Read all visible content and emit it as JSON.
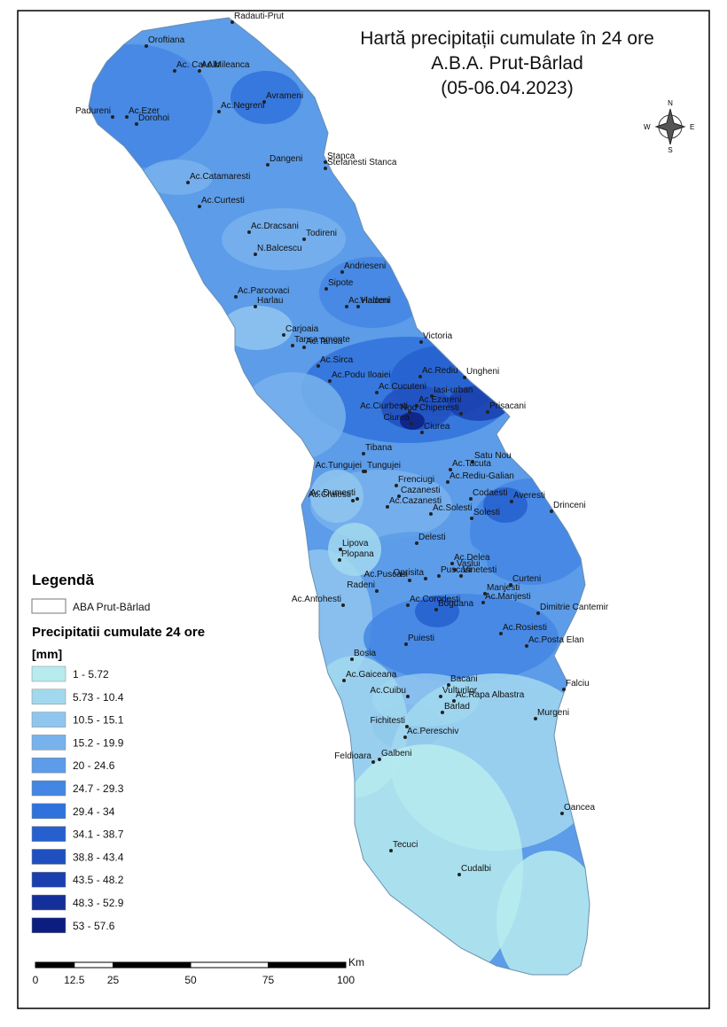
{
  "title": {
    "lines": [
      "Hartă precipitații cumulate în 24 ore",
      "A.B.A. Prut-Bârlad",
      "(05-06.04.2023)"
    ]
  },
  "compass": {
    "north": "N",
    "south": "S",
    "east": "E",
    "west": "W"
  },
  "legend": {
    "title": "Legendă",
    "boundary_label": "ABA Prut-Bârlad",
    "subtitle": "Precipitatii cumulate 24 ore",
    "unit": "[mm]",
    "classes": [
      {
        "label": "1 - 5.72",
        "color": "#b7ecef"
      },
      {
        "label": "5.73 - 10.4",
        "color": "#a2d8ee"
      },
      {
        "label": "10.5 - 15.1",
        "color": "#8fc6ef"
      },
      {
        "label": "15.2 - 19.9",
        "color": "#78b2ec"
      },
      {
        "label": "20 - 24.6",
        "color": "#5c9ce8"
      },
      {
        "label": "24.7 - 29.3",
        "color": "#4386e3"
      },
      {
        "label": "29.4 - 34",
        "color": "#2f72dc"
      },
      {
        "label": "34.1 - 38.7",
        "color": "#2660cf"
      },
      {
        "label": "38.8 - 43.4",
        "color": "#2050c0"
      },
      {
        "label": "43.5 - 48.2",
        "color": "#1a3fae"
      },
      {
        "label": "48.3 - 52.9",
        "color": "#142f9a"
      },
      {
        "label": "53 - 57.6",
        "color": "#0c1d80"
      }
    ]
  },
  "scale_bar": {
    "ticks": [
      0,
      12.5,
      25,
      50,
      75,
      100
    ],
    "unit": "Km"
  },
  "stations": [
    {
      "name": "Radauti-Prut"
    },
    {
      "name": "Oroftiana"
    },
    {
      "name": "Ac. Cal Alb"
    },
    {
      "name": "Ac.Mileanca"
    },
    {
      "name": "Avrameni"
    },
    {
      "name": "Ac.Negreni"
    },
    {
      "name": "Padureni"
    },
    {
      "name": "Ac.Ezer"
    },
    {
      "name": "Dorohoi"
    },
    {
      "name": "Dangeni"
    },
    {
      "name": "Stanca"
    },
    {
      "name": "Stefanesti Stanca"
    },
    {
      "name": "Ac.Catamaresti"
    },
    {
      "name": "Ac.Curtesti"
    },
    {
      "name": "Ac.Dracsani"
    },
    {
      "name": "Todireni"
    },
    {
      "name": "N.Balcescu"
    },
    {
      "name": "Andrieseni"
    },
    {
      "name": "Sipote"
    },
    {
      "name": "Ac.Parcovaci"
    },
    {
      "name": "Ac.Halceni"
    },
    {
      "name": "Vladeni"
    },
    {
      "name": "Harlau"
    },
    {
      "name": "Carjoaia"
    },
    {
      "name": "Tansa amonte"
    },
    {
      "name": "Ac.Tansa"
    },
    {
      "name": "Victoria"
    },
    {
      "name": "Ac.Sirca"
    },
    {
      "name": "Ac.Podu Iloaiei"
    },
    {
      "name": "Ac.Rediu"
    },
    {
      "name": "Ungheni"
    },
    {
      "name": "Ac.Cucuteni"
    },
    {
      "name": "Iasi-urban"
    },
    {
      "name": "Ac.Ezareni"
    },
    {
      "name": "Prisacani"
    },
    {
      "name": "Nod Chiperesti"
    },
    {
      "name": "Ac.Ciurbesti"
    },
    {
      "name": "Ciurea"
    },
    {
      "name": "Ciurea"
    },
    {
      "name": "Tibana"
    },
    {
      "name": "Ac.Tungujei"
    },
    {
      "name": "Tungujei"
    },
    {
      "name": "Satu Nou"
    },
    {
      "name": "Ac.Tacuta"
    },
    {
      "name": "Ac.Rediu-Galian"
    },
    {
      "name": "Frenciugi"
    },
    {
      "name": "Cazanesti"
    },
    {
      "name": "Ac.Craiesti"
    },
    {
      "name": "Ac.Dumesti"
    },
    {
      "name": "Codaesti"
    },
    {
      "name": "Averesti"
    },
    {
      "name": "Drinceni"
    },
    {
      "name": "Ac.Cazanesti"
    },
    {
      "name": "Ac.Solesti"
    },
    {
      "name": "Solesti"
    },
    {
      "name": "Delesti"
    },
    {
      "name": "Lipova"
    },
    {
      "name": "Plopana"
    },
    {
      "name": "Ac.Delea"
    },
    {
      "name": "Vaslui"
    },
    {
      "name": "Oprisita"
    },
    {
      "name": "Puscasi"
    },
    {
      "name": "Vinetesti"
    },
    {
      "name": "Curteni"
    },
    {
      "name": "Ac.Puscasi"
    },
    {
      "name": "Radeni"
    },
    {
      "name": "Manjesti"
    },
    {
      "name": "Ac.Antohesti"
    },
    {
      "name": "Ac.Corodesti"
    },
    {
      "name": "Ac.Manjesti"
    },
    {
      "name": "Bogdana"
    },
    {
      "name": "Dimitrie Cantemir"
    },
    {
      "name": "Ac.Rosiesti"
    },
    {
      "name": "Ac.Posta Elan"
    },
    {
      "name": "Puiesti"
    },
    {
      "name": "Bosia"
    },
    {
      "name": "Ac.Gaiceana"
    },
    {
      "name": "Bacani"
    },
    {
      "name": "Ac.Cuibu"
    },
    {
      "name": "Vulturilor"
    },
    {
      "name": "Ac.Rapa Albastra"
    },
    {
      "name": "Falciu"
    },
    {
      "name": "Barlad"
    },
    {
      "name": "Murgeni"
    },
    {
      "name": "Fichitesti"
    },
    {
      "name": "Ac.Pereschiv"
    },
    {
      "name": "Galbeni"
    },
    {
      "name": "Feldioara"
    },
    {
      "name": "Oancea"
    },
    {
      "name": "Tecuci"
    },
    {
      "name": "Cudalbi"
    }
  ]
}
